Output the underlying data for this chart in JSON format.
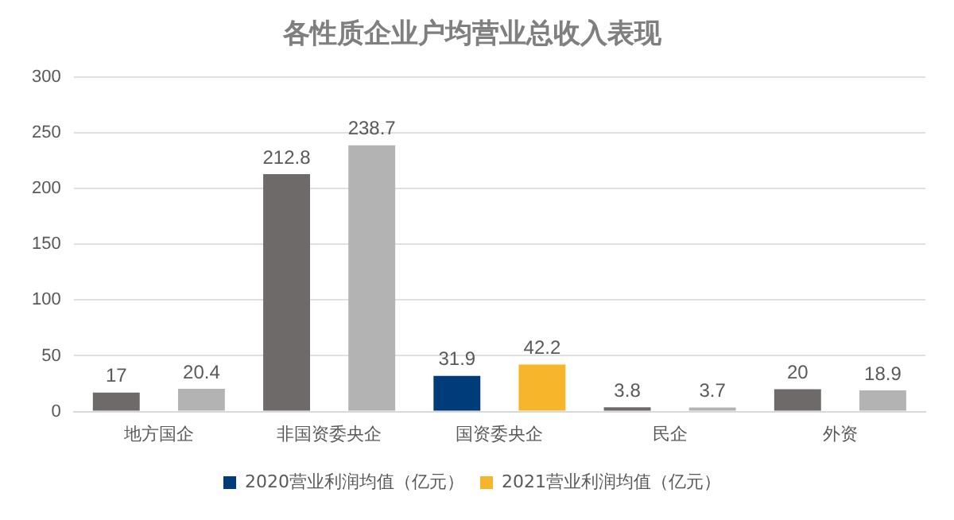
{
  "chart_data": {
    "type": "bar",
    "title": "各性质企业户均营业总收入表现",
    "categories": [
      "地方国企",
      "非国资委央企",
      "国资委央企",
      "民企",
      "外资"
    ],
    "series": [
      {
        "name": "2020营业利润均值（亿元）",
        "color": "#003b7a",
        "colors": [
          "#6f6a6a",
          "#6f6a6a",
          "#003b7a",
          "#6f6a6a",
          "#6f6a6a"
        ],
        "values": [
          17,
          212.8,
          31.9,
          3.8,
          20
        ]
      },
      {
        "name": "2021营业利润均值（亿元）",
        "color": "#f7b52c",
        "colors": [
          "#b3b3b3",
          "#b3b3b3",
          "#f7b52c",
          "#b3b3b3",
          "#b3b3b3"
        ],
        "values": [
          20.4,
          238.7,
          42.2,
          3.7,
          18.9
        ]
      }
    ],
    "ylim": [
      0,
      300
    ],
    "yticks": [
      0,
      50,
      100,
      150,
      200,
      250,
      300
    ],
    "grid": "y",
    "legend": "bottom",
    "data_labels": true
  }
}
